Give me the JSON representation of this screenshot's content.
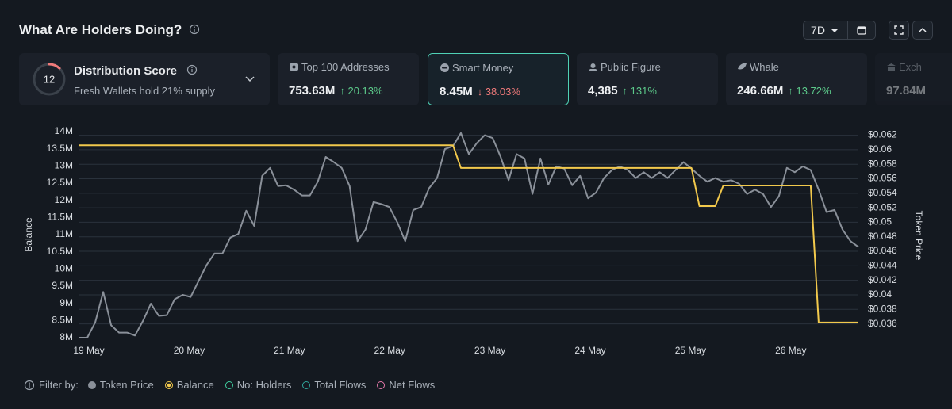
{
  "header": {
    "title": "What Are Holders Doing?",
    "range": "7D"
  },
  "cards": [
    {
      "title": "Distribution Score",
      "score": 12,
      "score_max": 100,
      "subtitle": "Fresh Wallets hold 21% supply"
    },
    {
      "title": "Top 100 Addresses",
      "value": "753.63M",
      "change": "↑ 20.13%",
      "trend": "up"
    },
    {
      "title": "Smart Money",
      "value": "8.45M",
      "change": "↓ 38.03%",
      "trend": "down",
      "selected": true
    },
    {
      "title": "Public Figure",
      "value": "4,385",
      "change": "↑ 131%",
      "trend": "up"
    },
    {
      "title": "Whale",
      "value": "246.66M",
      "change": "↑ 13.72%",
      "trend": "up"
    },
    {
      "title": "Exch",
      "value": "97.84M"
    }
  ],
  "chart_data": {
    "type": "line",
    "ylabel": "Balance",
    "y2label": "Token Price",
    "xtick_labels": [
      "19 May",
      "20 May",
      "21 May",
      "22 May",
      "23 May",
      "24 May",
      "25 May",
      "26 May"
    ],
    "ylim": [
      8000000,
      14000000
    ],
    "yticks": [
      {
        "value": 8000000,
        "label": "8M"
      },
      {
        "value": 8500000,
        "label": "8.5M"
      },
      {
        "value": 9000000,
        "label": "9M"
      },
      {
        "value": 9500000,
        "label": "9.5M"
      },
      {
        "value": 10000000,
        "label": "10M"
      },
      {
        "value": 10500000,
        "label": "10.5M"
      },
      {
        "value": 11000000,
        "label": "11M"
      },
      {
        "value": 11500000,
        "label": "11.5M"
      },
      {
        "value": 12000000,
        "label": "12M"
      },
      {
        "value": 12500000,
        "label": "12.5M"
      },
      {
        "value": 13000000,
        "label": "13M"
      },
      {
        "value": 13500000,
        "label": "13.5M"
      },
      {
        "value": 14000000,
        "label": "14M"
      }
    ],
    "y2lim": [
      0.0341,
      0.0625
    ],
    "y2ticks": [
      {
        "value": 0.036,
        "label": "$0.036"
      },
      {
        "value": 0.038,
        "label": "$0.038"
      },
      {
        "value": 0.04,
        "label": "$0.04"
      },
      {
        "value": 0.042,
        "label": "$0.042"
      },
      {
        "value": 0.044,
        "label": "$0.044"
      },
      {
        "value": 0.046,
        "label": "$0.046"
      },
      {
        "value": 0.048,
        "label": "$0.048"
      },
      {
        "value": 0.05,
        "label": "$0.05"
      },
      {
        "value": 0.052,
        "label": "$0.052"
      },
      {
        "value": 0.054,
        "label": "$0.054"
      },
      {
        "value": 0.056,
        "label": "$0.056"
      },
      {
        "value": 0.058,
        "label": "$0.058"
      },
      {
        "value": 0.06,
        "label": "$0.06"
      },
      {
        "value": 0.062,
        "label": "$0.062"
      }
    ],
    "grid": true,
    "filter_label": "Filter by:",
    "series": [
      {
        "name": "Token Price",
        "color": "#8a9099",
        "axis": "y2",
        "values": [
          0.0341,
          0.0341,
          0.0362,
          0.0404,
          0.0358,
          0.0348,
          0.0348,
          0.0344,
          0.0364,
          0.0388,
          0.0371,
          0.0372,
          0.0394,
          0.04,
          0.0397,
          0.0419,
          0.0441,
          0.0457,
          0.0457,
          0.0479,
          0.0484,
          0.0516,
          0.0495,
          0.0564,
          0.0575,
          0.055,
          0.0551,
          0.0545,
          0.0537,
          0.0537,
          0.0556,
          0.059,
          0.0583,
          0.0575,
          0.055,
          0.0474,
          0.049,
          0.0528,
          0.0525,
          0.0521,
          0.05,
          0.0474,
          0.0517,
          0.0521,
          0.0547,
          0.0561,
          0.0601,
          0.0605,
          0.0623,
          0.0594,
          0.0609,
          0.062,
          0.0616,
          0.059,
          0.0558,
          0.0594,
          0.0588,
          0.0539,
          0.0588,
          0.0552,
          0.0577,
          0.0574,
          0.0551,
          0.0564,
          0.0533,
          0.0541,
          0.0561,
          0.0572,
          0.0577,
          0.0572,
          0.0561,
          0.0569,
          0.0561,
          0.0569,
          0.0561,
          0.0572,
          0.0583,
          0.0574,
          0.0564,
          0.0556,
          0.0561,
          0.0556,
          0.0558,
          0.0553,
          0.0539,
          0.0545,
          0.0539,
          0.0521,
          0.0536,
          0.0575,
          0.0569,
          0.0577,
          0.0572,
          0.0545,
          0.0514,
          0.0517,
          0.049,
          0.0474,
          0.0466
        ]
      },
      {
        "name": "Balance",
        "color": "#f2c94c",
        "values": [
          13600000,
          13600000,
          13600000,
          13600000,
          13600000,
          13600000,
          13600000,
          13600000,
          13600000,
          13600000,
          13600000,
          13600000,
          13600000,
          13600000,
          13600000,
          13600000,
          13600000,
          13600000,
          13600000,
          13600000,
          13600000,
          13600000,
          13600000,
          13600000,
          13600000,
          13600000,
          13600000,
          13600000,
          13600000,
          13600000,
          13600000,
          13600000,
          13600000,
          13600000,
          13600000,
          13600000,
          13600000,
          13600000,
          13600000,
          13600000,
          13600000,
          13600000,
          13600000,
          13600000,
          13600000,
          13600000,
          13600000,
          13600000,
          12940000,
          12940000,
          12940000,
          12940000,
          12940000,
          12940000,
          12940000,
          12940000,
          12940000,
          12940000,
          12940000,
          12940000,
          12940000,
          12940000,
          12940000,
          12940000,
          12940000,
          12940000,
          12940000,
          12940000,
          12940000,
          12940000,
          12940000,
          12940000,
          12940000,
          12940000,
          12940000,
          12940000,
          12940000,
          12940000,
          11830000,
          11830000,
          11830000,
          12430000,
          12430000,
          12430000,
          12430000,
          12430000,
          12430000,
          12430000,
          12430000,
          12430000,
          12430000,
          12430000,
          12430000,
          8440000,
          8440000,
          8440000,
          8440000,
          8440000,
          8440000
        ]
      }
    ],
    "inactive_series": [
      {
        "name": "No: Holders",
        "color": "#3fcf9f"
      },
      {
        "name": "Total Flows",
        "color": "#2fa59a"
      },
      {
        "name": "Net Flows",
        "color": "#e377a8"
      }
    ]
  }
}
